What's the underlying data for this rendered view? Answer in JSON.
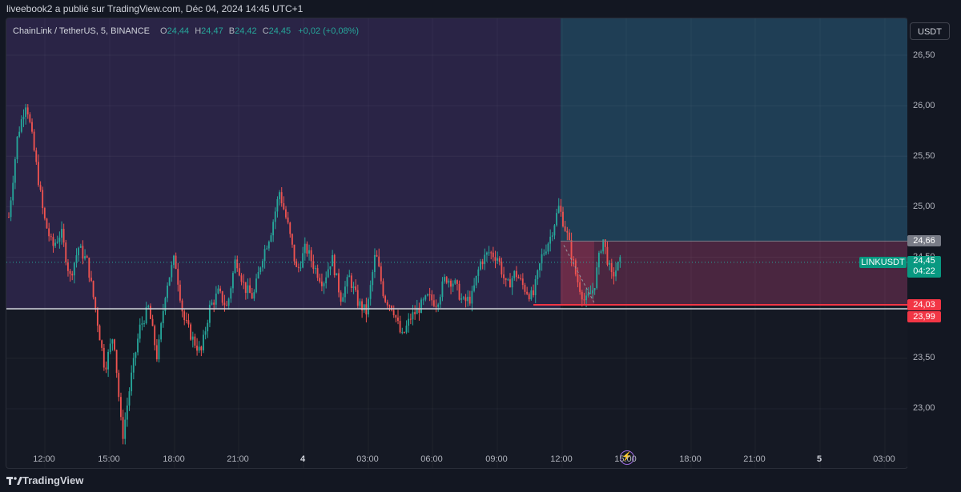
{
  "header": {
    "publisher_line": "liveebook2 a publié sur TradingView.com, Déc 04, 2024 14:45 UTC+1"
  },
  "legend": {
    "symbol_line": "ChainLink / TetherUS, 5, BINANCE",
    "o_key": "O",
    "o_val": "24,44",
    "h_key": "H",
    "h_val": "24,47",
    "b_key": "B",
    "b_val": "24,42",
    "c_key": "C",
    "c_val": "24,45",
    "change": "+0,02 (+0,08%)"
  },
  "price_axis": {
    "currency": "USDT",
    "ticks": [
      "26,50",
      "26,00",
      "25,50",
      "25,00",
      "24,50",
      "23,50",
      "23,00"
    ],
    "labels": {
      "upper_zone": "24,66",
      "last_price": "24,45",
      "countdown": "04:22",
      "stop_level": "24,03",
      "support_level": "23,99"
    },
    "symbol_tag": "LINKUSDT"
  },
  "time_axis": {
    "ticks": [
      "12:00",
      "15:00",
      "18:00",
      "21:00",
      "4",
      "03:00",
      "06:00",
      "09:00",
      "12:00",
      "15:00",
      "18:00",
      "21:00",
      "5",
      "03:00"
    ]
  },
  "footer": {
    "brand": "TradingView"
  },
  "colors": {
    "up": "#26a69a",
    "down": "#ef5350",
    "support_line": "#d1d4dc",
    "stop_line": "#f23645",
    "zone_target": "#1e4a66",
    "zone_loss": "#5b2a45"
  },
  "chart_data": {
    "type": "candlestick",
    "title": "ChainLink / TetherUS, 5, BINANCE",
    "ylim": [
      22.65,
      26.7
    ],
    "y_ticks": [
      26.5,
      26.0,
      25.5,
      25.0,
      24.5,
      23.5,
      23.0
    ],
    "x_ticks": [
      "12:00",
      "15:00",
      "18:00",
      "21:00",
      "4",
      "03:00",
      "06:00",
      "09:00",
      "12:00",
      "15:00",
      "18:00",
      "21:00",
      "5",
      "03:00"
    ],
    "ohlc_last": {
      "open": 24.44,
      "high": 24.47,
      "low": 24.42,
      "close": 24.45,
      "change": 0.02,
      "change_pct": 0.08
    },
    "levels": {
      "target_top": 24.66,
      "last": 24.45,
      "stop": 24.03,
      "support": 23.99
    },
    "price_path": [
      [
        "t",
        24.9
      ],
      [
        "t",
        25.7
      ],
      [
        "t",
        26.05
      ],
      [
        "t",
        25.5
      ],
      [
        "t",
        24.9
      ],
      [
        "t",
        24.6
      ],
      [
        "t",
        24.75
      ],
      [
        "t",
        24.3
      ],
      [
        "t",
        24.6
      ],
      [
        "t",
        24.45
      ],
      [
        "t",
        23.95
      ],
      [
        "t",
        23.4
      ],
      [
        "t",
        23.75
      ],
      [
        "t",
        22.7
      ],
      [
        "t",
        23.3
      ],
      [
        "t",
        23.8
      ],
      [
        "t",
        24.0
      ],
      [
        "t",
        23.5
      ],
      [
        "t",
        24.2
      ],
      [
        "t",
        24.5
      ],
      [
        "t",
        23.9
      ],
      [
        "t",
        23.7
      ],
      [
        "t",
        23.55
      ],
      [
        "t",
        24.0
      ],
      [
        "t",
        24.15
      ],
      [
        "t",
        24.0
      ],
      [
        "t",
        24.5
      ],
      [
        "t",
        24.2
      ],
      [
        "t",
        24.1
      ],
      [
        "t",
        24.5
      ],
      [
        "t",
        24.75
      ],
      [
        "t",
        25.15
      ],
      [
        "t",
        24.8
      ],
      [
        "t",
        24.35
      ],
      [
        "t",
        24.6
      ],
      [
        "t",
        24.4
      ],
      [
        "t",
        24.25
      ],
      [
        "t",
        24.5
      ],
      [
        "t",
        24.1
      ],
      [
        "t",
        24.3
      ],
      [
        "t",
        24.05
      ],
      [
        "t",
        23.95
      ],
      [
        "t",
        24.55
      ],
      [
        "t",
        24.1
      ],
      [
        "t",
        24.0
      ],
      [
        "t",
        23.7
      ],
      [
        "t",
        23.9
      ],
      [
        "t",
        24.0
      ],
      [
        "t",
        24.1
      ],
      [
        "t",
        24.05
      ],
      [
        "t",
        24.3
      ],
      [
        "t",
        24.25
      ],
      [
        "t",
        24.05
      ],
      [
        "t",
        24.1
      ],
      [
        "t",
        24.45
      ],
      [
        "t",
        24.55
      ],
      [
        "t",
        24.5
      ],
      [
        "t",
        24.2
      ],
      [
        "t",
        24.35
      ],
      [
        "t",
        24.2
      ],
      [
        "t",
        24.1
      ],
      [
        "t",
        24.5
      ],
      [
        "t",
        24.7
      ],
      [
        "t",
        25.0
      ],
      [
        "t",
        24.7
      ],
      [
        "t",
        24.3
      ],
      [
        "t",
        24.05
      ],
      [
        "t",
        24.2
      ],
      [
        "t",
        24.7
      ],
      [
        "t",
        24.3
      ],
      [
        "t",
        24.45
      ]
    ]
  }
}
